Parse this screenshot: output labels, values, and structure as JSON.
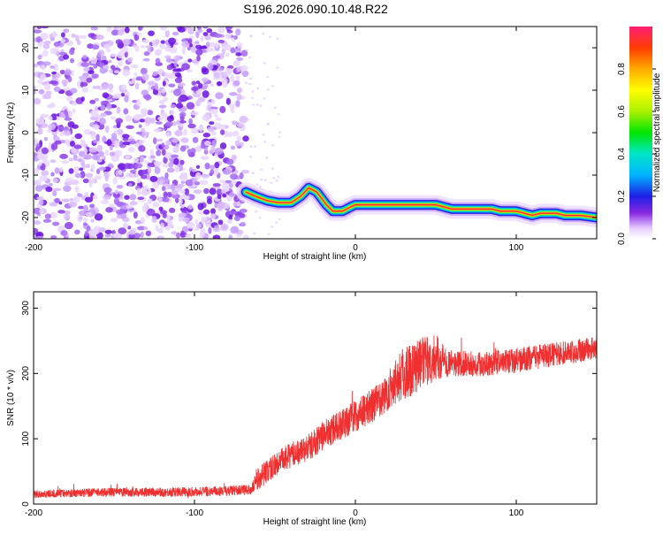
{
  "title": "S196.2026.090.10.48.R22",
  "colors": {
    "noise": "#8a2be2",
    "snr_line": "#f03030",
    "axis": "#000000"
  },
  "chart_data": [
    {
      "type": "heatmap",
      "name_text": "spectrogram",
      "xlabel": "Height of straight line (km)",
      "ylabel": "Frequency (Hz)",
      "xlim": [
        -200,
        150
      ],
      "ylim": [
        -25,
        25
      ],
      "x_ticks": [
        "-200",
        "-100",
        "0",
        "100"
      ],
      "x_tick_values": [
        -200,
        -100,
        0,
        100
      ],
      "y_ticks": [
        "20",
        "10",
        "0",
        "-10",
        "-20"
      ],
      "y_tick_values": [
        20,
        10,
        0,
        -10,
        -20
      ],
      "noise_region_x": [
        -200,
        -68
      ],
      "trace": {
        "x": [
          -68,
          -62,
          -55,
          -48,
          -40,
          -34,
          -29,
          -24,
          -18,
          -14,
          -8,
          -3,
          0,
          10,
          20,
          30,
          40,
          50,
          55,
          60,
          70,
          80,
          85,
          90,
          100,
          105,
          110,
          115,
          120,
          125,
          130,
          140,
          150
        ],
        "y": [
          -14,
          -15,
          -16,
          -16.5,
          -16.5,
          -15,
          -13,
          -14,
          -17,
          -18.5,
          -18.5,
          -17.5,
          -17,
          -17,
          -17,
          -17,
          -17,
          -17,
          -17.5,
          -18,
          -18,
          -18,
          -18,
          -18.5,
          -18.5,
          -19,
          -19.5,
          -19,
          -19,
          -19,
          -19.5,
          -19.5,
          -20
        ]
      },
      "colorbar": {
        "label": "Normalized spectral amplitude",
        "ticks": [
          "0.0",
          "0.2",
          "0.4",
          "0.6",
          "0.8"
        ],
        "tick_values": [
          0,
          0.2,
          0.4,
          0.6,
          0.8
        ],
        "range": [
          0,
          1
        ]
      }
    },
    {
      "type": "line",
      "name_text": "snr",
      "xlabel": "Height of straight line (km)",
      "ylabel": "SNR (10 * v/v)",
      "xlim": [
        -200,
        150
      ],
      "ylim": [
        0,
        325
      ],
      "x_ticks": [
        "-200",
        "-100",
        "0",
        "100"
      ],
      "x_tick_values": [
        -200,
        -100,
        0,
        100
      ],
      "y_ticks": [
        "0",
        "100",
        "200",
        "300"
      ],
      "y_tick_values": [
        0,
        100,
        200,
        300
      ],
      "trend": {
        "x": [
          -200,
          -160,
          -120,
          -80,
          -65,
          -60,
          -50,
          -40,
          -30,
          -20,
          -10,
          0,
          10,
          20,
          25,
          30,
          40,
          50,
          60,
          80,
          100,
          120,
          140,
          150
        ],
        "y": [
          15,
          18,
          18,
          20,
          22,
          40,
          60,
          75,
          85,
          105,
          120,
          135,
          150,
          170,
          190,
          200,
          215,
          225,
          215,
          215,
          220,
          228,
          235,
          240
        ]
      },
      "noise_amplitude": {
        "x": [
          -200,
          -65,
          -60,
          -20,
          20,
          30,
          50,
          60,
          150
        ],
        "y": [
          6,
          8,
          18,
          22,
          28,
          45,
          35,
          20,
          18
        ]
      }
    }
  ]
}
